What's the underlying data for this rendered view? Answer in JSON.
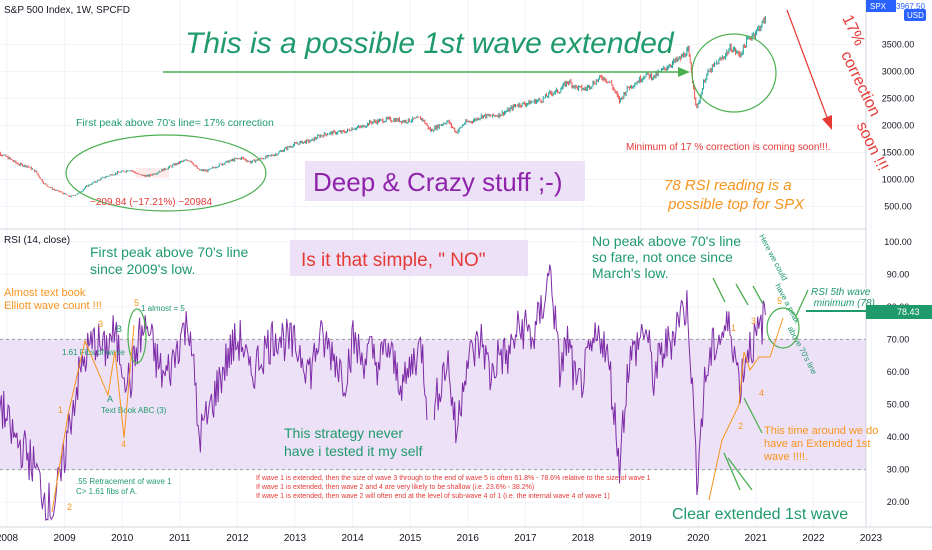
{
  "header": {
    "symbol_title": "S&P 500 Index, 1W, SPCFD",
    "rsi_title": "RSI (14, close)",
    "price_badge": "SPX",
    "last_price": "3967.50",
    "usd_badge": "USD",
    "rsi_badge": "78.43"
  },
  "chart_data": [
    {
      "type": "line",
      "panel": "price",
      "x_start": "2007-10",
      "x_end": "2021-03",
      "values": [
        1550,
        1470,
        1380,
        1280,
        1250,
        1150,
        920,
        820,
        760,
        680,
        740,
        880,
        960,
        1040,
        1100,
        1140,
        1180,
        1090,
        1060,
        1120,
        1190,
        1260,
        1330,
        1360,
        1170,
        1160,
        1240,
        1310,
        1360,
        1400,
        1320,
        1370,
        1420,
        1470,
        1560,
        1640,
        1690,
        1710,
        1800,
        1850,
        1870,
        1880,
        1950,
        1970,
        2060,
        2080,
        2110,
        2100,
        2080,
        2110,
        2130,
        1900,
        2000,
        2080,
        1870,
        2050,
        2090,
        2180,
        2170,
        2200,
        2270,
        2380,
        2400,
        2440,
        2480,
        2600,
        2640,
        2820,
        2700,
        2670,
        2790,
        2900,
        2780,
        2450,
        2700,
        2800,
        2940,
        2900,
        3020,
        3140,
        3230,
        3380,
        2300,
        2900,
        3100,
        3250,
        3440,
        3300,
        3600,
        3750,
        3970
      ],
      "yticks": [
        3500.0,
        3000.0,
        2500.0,
        2000.0,
        1500.0,
        1000.0,
        500.0
      ],
      "ylim": [
        250,
        3950
      ]
    },
    {
      "type": "line",
      "panel": "rsi",
      "x_start": "2007-10",
      "x_end": "2021-03",
      "values": [
        55,
        50,
        42,
        38,
        35,
        30,
        22,
        18,
        28,
        45,
        58,
        66,
        70,
        66,
        72,
        64,
        56,
        70,
        74,
        64,
        58,
        63,
        72,
        75,
        40,
        46,
        54,
        62,
        68,
        70,
        58,
        64,
        68,
        72,
        70,
        68,
        66,
        60,
        70,
        68,
        64,
        58,
        70,
        64,
        66,
        62,
        68,
        60,
        56,
        64,
        68,
        38,
        56,
        64,
        40,
        62,
        66,
        70,
        58,
        66,
        64,
        72,
        74,
        70,
        80,
        92,
        60,
        70,
        54,
        60,
        68,
        72,
        58,
        32,
        62,
        68,
        74,
        58,
        66,
        70,
        78,
        80,
        28,
        58,
        68,
        72,
        74,
        56,
        68,
        70,
        78
      ],
      "yticks": [
        100.0,
        90.0,
        80.0,
        70.0,
        60.0,
        50.0,
        40.0,
        30.0,
        20.0
      ],
      "ylim": [
        13,
        103
      ],
      "band": [
        30,
        70
      ]
    }
  ],
  "xaxis": {
    "labels": [
      "2008",
      "2009",
      "2010",
      "2011",
      "2012",
      "2013",
      "2014",
      "2015",
      "2016",
      "2017",
      "2018",
      "2019",
      "2020",
      "2021",
      "2022",
      "2023"
    ]
  },
  "annotations": {
    "main_title": "This is a possible 1st wave extended",
    "correction": "17% correction soon !!!",
    "first_peak_price": "First peak above 70's line= 17% correction",
    "drop_label": "−209.84 (−17.21%) −20984",
    "deep_crazy": "Deep & Crazy stuff ;-)",
    "minimum_correction": "Minimum of 17 % correction is coming soon!!!.",
    "rsi_top": "78 RSI reading is a possible top for SPX",
    "first_peak_rsi": "First peak above 70's line since 2009's low.",
    "simple": "Is it that simple, \" NO\"",
    "no_peak": "No peak above 70's line so fare, not once since March's low.",
    "here_we_could": "Here we could have a peak above 70's line",
    "rsi_5th": "RSI 5th wave minimum (78)",
    "elliott": "Almost text book Elliott wave count !!!",
    "fibs_wave": "1.61 Fibs of wave",
    "abc": "Text Book ABC (3)",
    "almost5": "1 almost = 5",
    "retracement": ".55 Retracement of wave 1 C> 1.61 fibs of A.",
    "strategy": "This strategy never have i tested it my self",
    "rule1": "If wave 1 is extended, then the size of wave 3 through to the end of wave 5 is often 61.8% - 78.6% relative to the size of wave 1",
    "rule2": "If wave 1 is extended, then wave 2 and 4 are very likely to be shallow (i.e. 23.6% - 38.2%)",
    "rule3": "If wave 1 is extended, then wave 2 will often end at the level of sub-wave 4 of 1 (i.e. the internal wave 4 of wave 1)",
    "extended_note": "This time around we do have an Extended 1st wave !!!!.",
    "clear_extended": "Clear extended 1st wave",
    "w1": "1",
    "w2": "2",
    "w3": "3",
    "w4": "4",
    "w5": "5",
    "wA": "A",
    "wB": "B"
  },
  "colors": {
    "candle_up": "#26a69a",
    "candle_down": "#ef5350",
    "rsi_line": "#7e2da8",
    "rsi_band": "#ede1f7",
    "green_text": "#1f9a6b",
    "arrow_green": "#4caf50",
    "orange": "#f7941d",
    "red": "#e53935",
    "purple_title": "#8e24aa"
  }
}
